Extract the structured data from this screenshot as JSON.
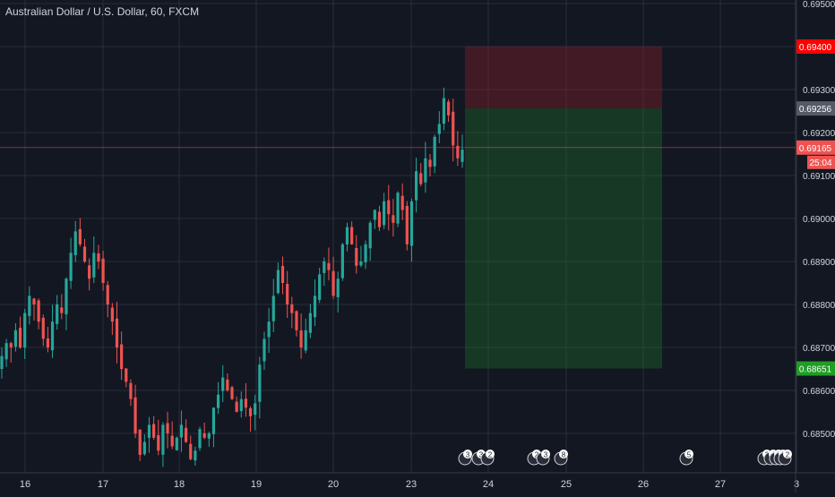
{
  "header": {
    "title": "Australian Dollar / U.S. Dollar, 60, FXCM"
  },
  "colors": {
    "background": "#131722",
    "grid": "#2a2e39",
    "axis_text": "#d1d4dc",
    "up": "#26a69a",
    "down": "#ef5350",
    "stop_zone": "#3a1a22",
    "target_zone": "#122a1f",
    "price_line": "#ef5350",
    "label_stop": "#ff0000",
    "label_entry": "#555a66",
    "label_target": "#1f9d24"
  },
  "price_labels": {
    "stop": "0.69400",
    "entry": "0.69256",
    "last": "0.69165",
    "countdown": "25:04",
    "target": "0.68651"
  },
  "event_badges": [
    "3",
    "3",
    "2",
    "2",
    "3",
    "8",
    "5",
    "2",
    "4",
    "2",
    "2",
    "2"
  ],
  "chart_data": {
    "type": "candlestick",
    "title": "Australian Dollar / U.S. Dollar, 60, FXCM",
    "x_ticks": [
      "16",
      "17",
      "18",
      "19",
      "20",
      "23",
      "24",
      "25",
      "26",
      "27",
      "3"
    ],
    "y_ticks": [
      "0.69500",
      "0.69400",
      "0.69300",
      "0.69200",
      "0.69100",
      "0.69000",
      "0.68900",
      "0.68800",
      "0.68700",
      "0.68600",
      "0.68500"
    ],
    "ylim": [
      0.6843,
      0.695
    ],
    "grid": true,
    "position": {
      "stop": 0.694,
      "entry": 0.69256,
      "target": 0.68651,
      "last": 0.69165
    },
    "path": [
      0.6868,
      0.6871,
      0.687,
      0.6874,
      0.687,
      0.6878,
      0.6882,
      0.688,
      0.6876,
      0.6872,
      0.687,
      0.6876,
      0.688,
      0.6878,
      0.6886,
      0.6892,
      0.6897,
      0.6894,
      0.689,
      0.6886,
      0.6892,
      0.689,
      0.6885,
      0.688,
      0.6876,
      0.687,
      0.6865,
      0.6862,
      0.6858,
      0.685,
      0.6845,
      0.6848,
      0.6852,
      0.6849,
      0.6846,
      0.6852,
      0.685,
      0.6847,
      0.6849,
      0.6852,
      0.6848,
      0.6844,
      0.6846,
      0.6851,
      0.6849,
      0.685,
      0.6856,
      0.6859,
      0.6863,
      0.686,
      0.6858,
      0.6855,
      0.6858,
      0.6856,
      0.6854,
      0.6857,
      0.6866,
      0.6872,
      0.6876,
      0.6882,
      0.6888,
      0.6885,
      0.688,
      0.6878,
      0.6874,
      0.687,
      0.6874,
      0.6878,
      0.6882,
      0.6887,
      0.689,
      0.6888,
      0.6882,
      0.6886,
      0.6894,
      0.6898,
      0.6894,
      0.6889,
      0.689,
      0.6894,
      0.6899,
      0.6902,
      0.6898,
      0.6904,
      0.6901,
      0.6899,
      0.6906,
      0.6902,
      0.6894,
      0.6904,
      0.6911,
      0.6908,
      0.6914,
      0.6912,
      0.6919,
      0.6922,
      0.6928,
      0.6924,
      0.6917,
      0.6914,
      0.6916
    ]
  }
}
